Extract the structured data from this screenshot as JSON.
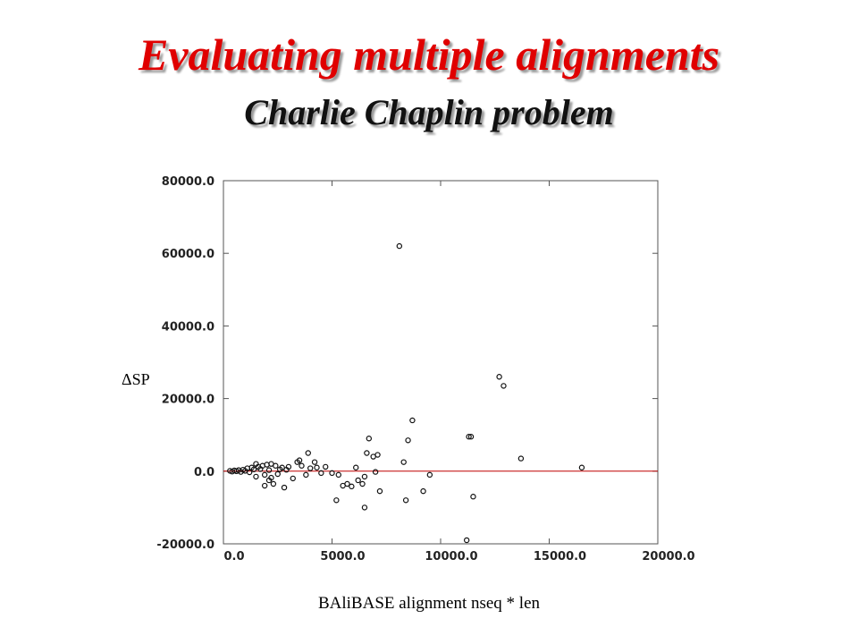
{
  "title": "Evaluating multiple alignments",
  "subtitle": "Charlie Chaplin problem",
  "chart_data": {
    "type": "scatter",
    "xlabel": "BAliBASE alignment nseq * len",
    "ylabel": "ΔSP",
    "xlim": [
      0,
      20000
    ],
    "ylim": [
      -20000,
      80000
    ],
    "x_ticks": [
      "0.0",
      "5000.0",
      "10000.0",
      "15000.0",
      "20000.0"
    ],
    "y_ticks": [
      "-20000.0",
      "0.0",
      "20000.0",
      "40000.0",
      "60000.0",
      "80000.0"
    ],
    "x_tick_values": [
      0,
      5000,
      10000,
      15000,
      20000
    ],
    "y_tick_values": [
      -20000,
      0,
      20000,
      40000,
      60000,
      80000
    ],
    "reference_line": {
      "y": 0,
      "color": "#c00000"
    },
    "points": [
      {
        "x": 300,
        "y": 100
      },
      {
        "x": 400,
        "y": -100
      },
      {
        "x": 500,
        "y": 200
      },
      {
        "x": 600,
        "y": 0
      },
      {
        "x": 700,
        "y": 300
      },
      {
        "x": 800,
        "y": -200
      },
      {
        "x": 900,
        "y": 400
      },
      {
        "x": 1000,
        "y": 100
      },
      {
        "x": 1100,
        "y": 800
      },
      {
        "x": 1200,
        "y": -300
      },
      {
        "x": 1300,
        "y": 1000
      },
      {
        "x": 1400,
        "y": 500
      },
      {
        "x": 1500,
        "y": 2000
      },
      {
        "x": 1500,
        "y": -1500
      },
      {
        "x": 1600,
        "y": 1200
      },
      {
        "x": 1700,
        "y": 600
      },
      {
        "x": 1800,
        "y": 1500
      },
      {
        "x": 1900,
        "y": -1000
      },
      {
        "x": 1900,
        "y": -4000
      },
      {
        "x": 2000,
        "y": 1800
      },
      {
        "x": 2100,
        "y": 300
      },
      {
        "x": 2100,
        "y": -2500
      },
      {
        "x": 2200,
        "y": 2000
      },
      {
        "x": 2200,
        "y": -1800
      },
      {
        "x": 2300,
        "y": -3500
      },
      {
        "x": 2400,
        "y": 1500
      },
      {
        "x": 2500,
        "y": -800
      },
      {
        "x": 2600,
        "y": 500
      },
      {
        "x": 2700,
        "y": 1000
      },
      {
        "x": 2800,
        "y": -4500
      },
      {
        "x": 2900,
        "y": 400
      },
      {
        "x": 3000,
        "y": 1200
      },
      {
        "x": 3200,
        "y": -2000
      },
      {
        "x": 3400,
        "y": 2500
      },
      {
        "x": 3500,
        "y": 3000
      },
      {
        "x": 3600,
        "y": 1500
      },
      {
        "x": 3800,
        "y": -1000
      },
      {
        "x": 3900,
        "y": 5000
      },
      {
        "x": 4000,
        "y": 800
      },
      {
        "x": 4200,
        "y": 2500
      },
      {
        "x": 4300,
        "y": 1000
      },
      {
        "x": 4500,
        "y": -500
      },
      {
        "x": 4700,
        "y": 1200
      },
      {
        "x": 5000,
        "y": -500
      },
      {
        "x": 5200,
        "y": -8000
      },
      {
        "x": 5300,
        "y": -1000
      },
      {
        "x": 5500,
        "y": -4000
      },
      {
        "x": 5700,
        "y": -3500
      },
      {
        "x": 5900,
        "y": -4200
      },
      {
        "x": 6100,
        "y": 1000
      },
      {
        "x": 6200,
        "y": -2500
      },
      {
        "x": 6400,
        "y": -3500
      },
      {
        "x": 6500,
        "y": -1500
      },
      {
        "x": 6500,
        "y": -10000
      },
      {
        "x": 6600,
        "y": 5000
      },
      {
        "x": 6700,
        "y": 9000
      },
      {
        "x": 6900,
        "y": 4000
      },
      {
        "x": 7000,
        "y": -200
      },
      {
        "x": 7100,
        "y": 4500
      },
      {
        "x": 7200,
        "y": -5500
      },
      {
        "x": 8100,
        "y": 62000
      },
      {
        "x": 8300,
        "y": 2500
      },
      {
        "x": 8400,
        "y": -8000
      },
      {
        "x": 8500,
        "y": 8500
      },
      {
        "x": 8700,
        "y": 14000
      },
      {
        "x": 9200,
        "y": -5500
      },
      {
        "x": 9500,
        "y": -1000
      },
      {
        "x": 11200,
        "y": -19000
      },
      {
        "x": 11300,
        "y": 9500
      },
      {
        "x": 11400,
        "y": 9500
      },
      {
        "x": 11500,
        "y": -7000
      },
      {
        "x": 12700,
        "y": 26000
      },
      {
        "x": 12900,
        "y": 23500
      },
      {
        "x": 13700,
        "y": 3500
      },
      {
        "x": 16500,
        "y": 1000
      }
    ]
  }
}
